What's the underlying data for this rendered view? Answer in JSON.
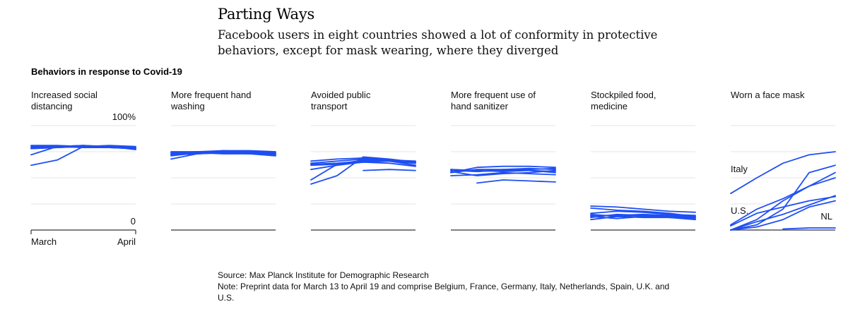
{
  "header": {
    "title": "Parting Ways",
    "subtitle": "Facebook users in eight countries showed a lot of conformity in protective behaviors, except for mask wearing, where they diverged",
    "section_label": "Behaviors in response to Covid-19"
  },
  "footer": {
    "source": "Source: Max Planck Institute for Demographic Research",
    "note": "Note: Preprint data for March 13 to April 19 and comprise Belgium, France, Germany, Italy, Netherlands, Spain, U.K. and U.S."
  },
  "colors": {
    "line": "#1f4ff2",
    "grid": "#e6e6e6",
    "baseline": "#333333"
  },
  "chart_data": [
    {
      "type": "line",
      "title": "Increased social distancing",
      "ylim": [
        0,
        100
      ],
      "y_tick_labels": [
        "100%",
        "0"
      ],
      "x_tick_labels": [
        "March",
        "April"
      ],
      "grid": true,
      "series": [
        {
          "x": [
            0,
            1,
            2,
            3,
            4
          ],
          "values": [
            62,
            67,
            80,
            81,
            80
          ]
        },
        {
          "x": [
            0,
            1,
            2,
            3,
            4
          ],
          "values": [
            72,
            80,
            81,
            80,
            79
          ]
        },
        {
          "x": [
            0,
            1,
            2,
            3,
            4
          ],
          "values": [
            78,
            79,
            80,
            80,
            78
          ]
        },
        {
          "x": [
            0,
            1,
            2,
            3,
            4
          ],
          "values": [
            80,
            80,
            81,
            79,
            78
          ]
        },
        {
          "x": [
            0,
            1,
            2,
            3,
            4
          ],
          "values": [
            80,
            80,
            79,
            79,
            78
          ]
        },
        {
          "x": [
            0,
            1,
            2,
            3,
            4
          ],
          "values": [
            81,
            81,
            80,
            80,
            77
          ]
        },
        {
          "x": [
            0,
            1,
            2,
            3,
            4
          ],
          "values": [
            78,
            79,
            80,
            80,
            79
          ]
        },
        {
          "x": [
            0,
            1,
            2,
            3,
            4
          ],
          "values": [
            79,
            80,
            80,
            79,
            78
          ]
        }
      ]
    },
    {
      "type": "line",
      "title": "More frequent hand washing",
      "ylim": [
        0,
        100
      ],
      "grid": true,
      "series": [
        {
          "x": [
            0,
            1,
            2,
            3,
            4
          ],
          "values": [
            68,
            73,
            76,
            75,
            72
          ]
        },
        {
          "x": [
            0,
            1,
            2,
            3,
            4
          ],
          "values": [
            72,
            73,
            74,
            73,
            71
          ]
        },
        {
          "x": [
            0,
            1,
            2,
            3,
            4
          ],
          "values": [
            74,
            74,
            75,
            75,
            74
          ]
        },
        {
          "x": [
            0,
            1,
            2,
            3,
            4
          ],
          "values": [
            75,
            75,
            76,
            76,
            75
          ]
        },
        {
          "x": [
            0,
            1,
            2,
            3,
            4
          ],
          "values": [
            73,
            74,
            73,
            73,
            73
          ]
        },
        {
          "x": [
            0,
            1,
            2,
            3,
            4
          ],
          "values": [
            71,
            74,
            76,
            75,
            73
          ]
        },
        {
          "x": [
            0,
            1,
            2,
            3,
            4
          ],
          "values": [
            74,
            75,
            75,
            74,
            74
          ]
        },
        {
          "x": [
            0,
            1,
            2,
            3,
            4
          ],
          "values": [
            72,
            73,
            74,
            74,
            72
          ]
        }
      ]
    },
    {
      "type": "line",
      "title": "Avoided public transport",
      "ylim": [
        0,
        100
      ],
      "grid": true,
      "series": [
        {
          "x": [
            0,
            1,
            2,
            3,
            4
          ],
          "values": [
            44,
            52,
            70,
            68,
            65
          ]
        },
        {
          "x": [
            0,
            1,
            2,
            3,
            4
          ],
          "values": [
            48,
            63,
            67,
            66,
            64
          ]
        },
        {
          "x": [
            0,
            1,
            2,
            3,
            4
          ],
          "values": [
            63,
            64,
            66,
            66,
            64
          ]
        },
        {
          "x": [
            0,
            1,
            2,
            3,
            4
          ],
          "values": [
            62,
            63,
            65,
            66,
            62
          ]
        },
        {
          "x": [
            0,
            1,
            2,
            3,
            4
          ],
          "values": [
            64,
            66,
            68,
            67,
            65
          ]
        },
        {
          "x": [
            0,
            1,
            2,
            3,
            4
          ],
          "values": [
            66,
            68,
            69,
            67,
            66
          ]
        },
        {
          "x": [
            0,
            1,
            2,
            3,
            4
          ],
          "values": [
            null,
            null,
            57,
            58,
            57
          ]
        },
        {
          "x": [
            0,
            1,
            2,
            3,
            4
          ],
          "values": [
            58,
            62,
            65,
            64,
            61
          ]
        }
      ]
    },
    {
      "type": "line",
      "title": "More frequent use of hand sanitizer",
      "ylim": [
        0,
        100
      ],
      "grid": true,
      "series": [
        {
          "x": [
            0,
            1,
            2,
            3,
            4
          ],
          "values": [
            55,
            60,
            61,
            61,
            60
          ]
        },
        {
          "x": [
            0,
            1,
            2,
            3,
            4
          ],
          "values": [
            58,
            56,
            57,
            58,
            59
          ]
        },
        {
          "x": [
            0,
            1,
            2,
            3,
            4
          ],
          "values": [
            56,
            52,
            54,
            55,
            57
          ]
        },
        {
          "x": [
            0,
            1,
            2,
            3,
            4
          ],
          "values": [
            null,
            45,
            48,
            47,
            46
          ]
        },
        {
          "x": [
            0,
            1,
            2,
            3,
            4
          ],
          "values": [
            57,
            56,
            58,
            57,
            56
          ]
        },
        {
          "x": [
            0,
            1,
            2,
            3,
            4
          ],
          "values": [
            55,
            58,
            58,
            59,
            58
          ]
        },
        {
          "x": [
            0,
            1,
            2,
            3,
            4
          ],
          "values": [
            52,
            53,
            55,
            54,
            53
          ]
        },
        {
          "x": [
            0,
            1,
            2,
            3,
            4
          ],
          "values": [
            58,
            57,
            56,
            57,
            55
          ]
        }
      ]
    },
    {
      "type": "line",
      "title": "Stockpiled food, medicine",
      "ylim": [
        0,
        100
      ],
      "grid": true,
      "series": [
        {
          "x": [
            0,
            1,
            2,
            3,
            4
          ],
          "values": [
            23,
            22,
            20,
            18,
            17
          ]
        },
        {
          "x": [
            0,
            1,
            2,
            3,
            4
          ],
          "values": [
            21,
            19,
            18,
            16,
            13
          ]
        },
        {
          "x": [
            0,
            1,
            2,
            3,
            4
          ],
          "values": [
            16,
            18,
            17,
            15,
            14
          ]
        },
        {
          "x": [
            0,
            1,
            2,
            3,
            4
          ],
          "values": [
            15,
            13,
            14,
            12,
            10
          ]
        },
        {
          "x": [
            0,
            1,
            2,
            3,
            4
          ],
          "values": [
            12,
            15,
            14,
            13,
            12
          ]
        },
        {
          "x": [
            0,
            1,
            2,
            3,
            4
          ],
          "values": [
            10,
            13,
            12,
            12,
            11
          ]
        },
        {
          "x": [
            0,
            1,
            2,
            3,
            4
          ],
          "values": [
            13,
            11,
            13,
            13,
            12
          ]
        },
        {
          "x": [
            0,
            1,
            2,
            3,
            4
          ],
          "values": [
            14,
            14,
            15,
            14,
            13
          ]
        }
      ]
    },
    {
      "type": "line",
      "title": "Worn a face mask",
      "ylim": [
        0,
        100
      ],
      "grid": true,
      "annotations": [
        "Italy",
        "U.S.",
        "NL"
      ],
      "series": [
        {
          "name": "Italy",
          "x": [
            0,
            1,
            2,
            3,
            4
          ],
          "values": [
            35,
            50,
            64,
            72,
            75
          ]
        },
        {
          "x": [
            0,
            1,
            2,
            3,
            4
          ],
          "values": [
            0,
            5,
            20,
            55,
            62
          ]
        },
        {
          "x": [
            0,
            1,
            2,
            3,
            4
          ],
          "values": [
            0,
            10,
            28,
            42,
            55
          ]
        },
        {
          "x": [
            0,
            1,
            2,
            3,
            4
          ],
          "values": [
            5,
            20,
            30,
            42,
            50
          ]
        },
        {
          "x": [
            0,
            1,
            2,
            3,
            4
          ],
          "values": [
            0,
            3,
            10,
            22,
            28
          ]
        },
        {
          "name": "U.S.",
          "x": [
            0,
            1,
            2,
            3,
            4
          ],
          "values": [
            4,
            16,
            22,
            28,
            32
          ]
        },
        {
          "x": [
            0,
            1,
            2,
            3,
            4
          ],
          "values": [
            0,
            8,
            15,
            24,
            33
          ]
        },
        {
          "name": "NL",
          "x": [
            0,
            1,
            2,
            3,
            4
          ],
          "values": [
            null,
            null,
            1,
            2,
            2
          ]
        }
      ]
    }
  ]
}
